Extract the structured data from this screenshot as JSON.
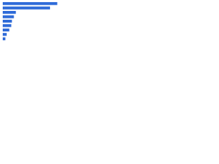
{
  "chart_data": {
    "type": "hbar",
    "categories": [
      null,
      null,
      null,
      null,
      null,
      null,
      null,
      null,
      null
    ],
    "values": [
      83,
      72,
      20,
      17,
      14,
      13,
      10,
      6,
      4
    ],
    "color": "#2f6bd8",
    "xlim": [
      0,
      100
    ]
  }
}
